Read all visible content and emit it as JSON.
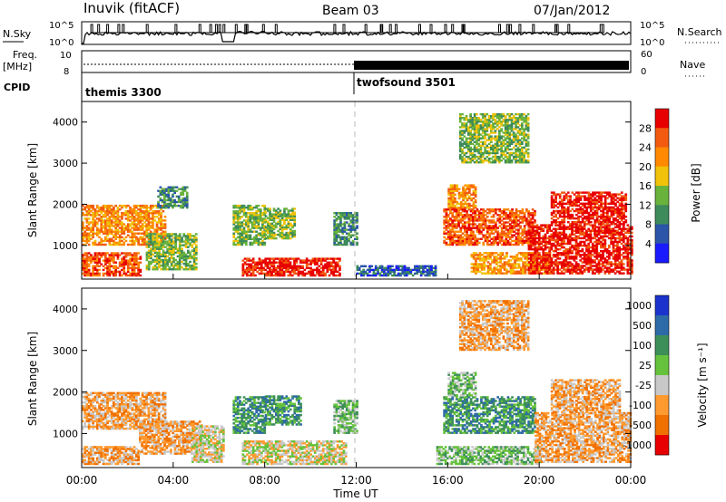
{
  "header": {
    "station": "Inuvik (fitACF)",
    "beam": "Beam 03",
    "date": "07/Jan/2012"
  },
  "top_panels": {
    "nsky_label": "N.Sky",
    "nsky_ticks": [
      "10^5",
      "10^0"
    ],
    "nsearch_label": "N.Search",
    "nsearch_ticks": [
      "10^5",
      "10^0"
    ],
    "freq_label": "Freq.",
    "freq_unit": "[MHz]",
    "freq_ticks": [
      "10",
      "8"
    ],
    "nave_label": "Nave",
    "nave_ticks": [
      "60",
      "0"
    ],
    "cpid_label": "CPID",
    "cpid_segments": [
      {
        "name": "themis 3300",
        "start_hour": 0,
        "end_hour": 12
      },
      {
        "name": "twofsound 3501",
        "start_hour": 12,
        "end_hour": 24
      }
    ]
  },
  "chart_data": [
    {
      "type": "heatmap",
      "title": "",
      "xlabel": "Time UT",
      "ylabel": "Slant Range [km]",
      "x_ticks": [
        "00:00",
        "04:00",
        "08:00",
        "12:00",
        "16:00",
        "20:00",
        "00:00"
      ],
      "xlim_hours": [
        0,
        24
      ],
      "ylim_km": [
        180,
        4500
      ],
      "y_ticks": [
        "1000",
        "2000",
        "3000",
        "4000"
      ],
      "colorbar": {
        "label": "Power [dB]",
        "ticks": [
          "4",
          "8",
          "12",
          "16",
          "20",
          "24",
          "28"
        ],
        "colors": [
          "#1a1aff",
          "#2a55a8",
          "#3d8a5a",
          "#69b23c",
          "#f0c20a",
          "#ff8a00",
          "#f25a10",
          "#e80000"
        ]
      },
      "echo_regions": [
        {
          "t0": 0,
          "t1": 2.6,
          "r0": 250,
          "r1": 800,
          "level": 6
        },
        {
          "t0": 0,
          "t1": 3.6,
          "r0": 1000,
          "r1": 1950,
          "level": 5
        },
        {
          "t0": 2.8,
          "t1": 5.0,
          "r0": 400,
          "r1": 1300,
          "level": 3
        },
        {
          "t0": 3.3,
          "t1": 4.6,
          "r0": 1900,
          "r1": 2400,
          "level": 2
        },
        {
          "t0": 6.6,
          "t1": 8.0,
          "r0": 1000,
          "r1": 1950,
          "level": 3
        },
        {
          "t0": 7.0,
          "t1": 11.3,
          "r0": 250,
          "r1": 700,
          "level": 7
        },
        {
          "t0": 8.0,
          "t1": 9.3,
          "r0": 1150,
          "r1": 1900,
          "level": 3
        },
        {
          "t0": 11.0,
          "t1": 12.0,
          "r0": 1000,
          "r1": 1800,
          "level": 2
        },
        {
          "t0": 12.0,
          "t1": 15.5,
          "r0": 250,
          "r1": 500,
          "level": 1
        },
        {
          "t0": 15.8,
          "t1": 19.8,
          "r0": 1000,
          "r1": 1900,
          "level": 6
        },
        {
          "t0": 16.0,
          "t1": 17.2,
          "r0": 1900,
          "r1": 2450,
          "level": 5
        },
        {
          "t0": 17.0,
          "t1": 20.5,
          "r0": 300,
          "r1": 800,
          "level": 5
        },
        {
          "t0": 19.5,
          "t1": 24.0,
          "r0": 300,
          "r1": 1500,
          "level": 7
        },
        {
          "t0": 20.5,
          "t1": 23.8,
          "r0": 1500,
          "r1": 2300,
          "level": 7
        },
        {
          "t0": 16.5,
          "t1": 19.5,
          "r0": 3000,
          "r1": 4200,
          "level": 3
        }
      ]
    },
    {
      "type": "heatmap",
      "title": "",
      "xlabel": "Time UT",
      "ylabel": "Slant Range [km]",
      "x_ticks": [
        "00:00",
        "04:00",
        "08:00",
        "12:00",
        "16:00",
        "20:00",
        "00:00"
      ],
      "xlim_hours": [
        0,
        24
      ],
      "ylim_km": [
        180,
        4500
      ],
      "y_ticks": [
        "1000",
        "2000",
        "3000",
        "4000"
      ],
      "colorbar": {
        "label": "Velocity [m s⁻¹]",
        "ticks": [
          "1000",
          "500",
          "100",
          "25",
          "-25",
          "-100",
          "-500",
          "-1000"
        ],
        "colors": [
          "#1a33cc",
          "#2d6aa8",
          "#3d8f5a",
          "#66c23c",
          "#c8c8c8",
          "#ff9a30",
          "#f07000",
          "#e80000"
        ]
      },
      "echo_regions": [
        {
          "t0": 0,
          "t1": 3.6,
          "r0": 1100,
          "r1": 2000,
          "level": 5
        },
        {
          "t0": 0,
          "t1": 2.5,
          "r0": 250,
          "r1": 700,
          "level": 5
        },
        {
          "t0": 2.5,
          "t1": 5.2,
          "r0": 500,
          "r1": 1300,
          "level": 5
        },
        {
          "t0": 4.8,
          "t1": 6.2,
          "r0": 300,
          "r1": 1200,
          "level": 4
        },
        {
          "t0": 6.6,
          "t1": 8.0,
          "r0": 1000,
          "r1": 1900,
          "level": 2
        },
        {
          "t0": 7.0,
          "t1": 11.5,
          "r0": 250,
          "r1": 800,
          "level": 4
        },
        {
          "t0": 8.0,
          "t1": 9.6,
          "r0": 1200,
          "r1": 1900,
          "level": 2
        },
        {
          "t0": 11.0,
          "t1": 12.0,
          "r0": 1000,
          "r1": 1800,
          "level": 3
        },
        {
          "t0": 15.8,
          "t1": 19.8,
          "r0": 1000,
          "r1": 1900,
          "level": 2
        },
        {
          "t0": 16.0,
          "t1": 17.2,
          "r0": 1900,
          "r1": 2450,
          "level": 3
        },
        {
          "t0": 15.5,
          "t1": 20.0,
          "r0": 250,
          "r1": 700,
          "level": 3
        },
        {
          "t0": 19.8,
          "t1": 24.0,
          "r0": 300,
          "r1": 1500,
          "level": 5
        },
        {
          "t0": 20.5,
          "t1": 23.5,
          "r0": 1500,
          "r1": 2300,
          "level": 5
        },
        {
          "t0": 16.5,
          "t1": 19.5,
          "r0": 3000,
          "r1": 4200,
          "level": 5
        }
      ]
    }
  ]
}
